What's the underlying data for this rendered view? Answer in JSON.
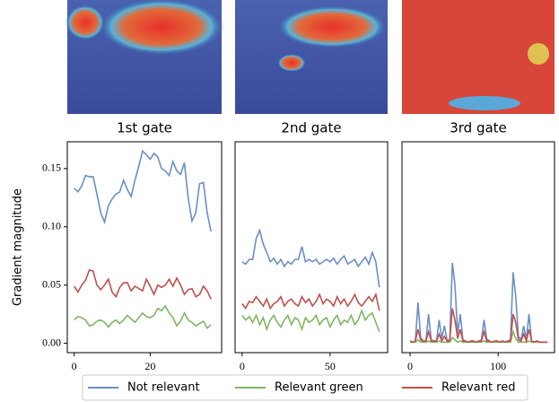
{
  "chart_data": [
    {
      "type": "line",
      "title": "1st gate",
      "ylabel": "Gradient magnitude",
      "x": [
        0,
        1,
        2,
        3,
        4,
        5,
        6,
        7,
        8,
        9,
        10,
        11,
        12,
        13,
        14,
        15,
        16,
        17,
        18,
        19,
        20,
        21,
        22,
        23,
        24,
        25,
        26,
        27,
        28,
        29,
        30,
        31,
        32,
        33,
        34,
        35,
        36
      ],
      "series": [
        {
          "name": "Not relevant",
          "color": "#6a8fc5",
          "values": [
            0.133,
            0.13,
            0.135,
            0.144,
            0.143,
            0.143,
            0.128,
            0.112,
            0.104,
            0.118,
            0.124,
            0.128,
            0.13,
            0.14,
            0.132,
            0.126,
            0.14,
            0.152,
            0.165,
            0.162,
            0.158,
            0.163,
            0.16,
            0.15,
            0.148,
            0.144,
            0.156,
            0.148,
            0.145,
            0.155,
            0.125,
            0.105,
            0.112,
            0.137,
            0.138,
            0.112,
            0.096
          ]
        },
        {
          "name": "Relevant green",
          "color": "#7fb661",
          "values": [
            0.02,
            0.023,
            0.022,
            0.02,
            0.015,
            0.016,
            0.019,
            0.02,
            0.018,
            0.014,
            0.018,
            0.02,
            0.017,
            0.02,
            0.024,
            0.021,
            0.018,
            0.022,
            0.026,
            0.023,
            0.022,
            0.024,
            0.03,
            0.028,
            0.032,
            0.026,
            0.022,
            0.015,
            0.019,
            0.026,
            0.02,
            0.018,
            0.015,
            0.017,
            0.019,
            0.013,
            0.016
          ]
        },
        {
          "name": "Relevant red",
          "color": "#c0504d",
          "values": [
            0.049,
            0.044,
            0.05,
            0.054,
            0.063,
            0.062,
            0.05,
            0.046,
            0.05,
            0.055,
            0.044,
            0.04,
            0.048,
            0.052,
            0.052,
            0.045,
            0.049,
            0.047,
            0.045,
            0.055,
            0.049,
            0.042,
            0.05,
            0.048,
            0.05,
            0.055,
            0.049,
            0.056,
            0.05,
            0.042,
            0.046,
            0.047,
            0.04,
            0.042,
            0.049,
            0.045,
            0.038
          ]
        }
      ],
      "xlim": [
        -1.8,
        38.8
      ],
      "xticks": [
        0,
        20
      ],
      "ylim": [
        -0.008,
        0.173
      ],
      "yticks": [
        {
          "value": 0,
          "label": "0.00"
        },
        0.05,
        {
          "value": 0.1,
          "label": "0.10"
        },
        0.15
      ]
    },
    {
      "type": "line",
      "title": "2nd gate",
      "x": [
        0,
        2,
        4,
        6,
        8,
        10,
        12,
        14,
        16,
        18,
        20,
        22,
        24,
        26,
        28,
        30,
        32,
        34,
        36,
        38,
        40,
        42,
        44,
        46,
        48,
        50,
        52,
        54,
        56,
        58,
        60,
        62,
        64,
        66,
        68,
        70,
        72,
        74,
        76,
        78
      ],
      "series": [
        {
          "name": "Not relevant",
          "color": "#6a8fc5",
          "values": [
            0.07,
            0.068,
            0.072,
            0.072,
            0.09,
            0.097,
            0.085,
            0.078,
            0.07,
            0.073,
            0.068,
            0.072,
            0.066,
            0.07,
            0.068,
            0.072,
            0.072,
            0.083,
            0.07,
            0.072,
            0.07,
            0.072,
            0.068,
            0.07,
            0.072,
            0.07,
            0.073,
            0.068,
            0.072,
            0.075,
            0.068,
            0.07,
            0.072,
            0.066,
            0.07,
            0.074,
            0.068,
            0.078,
            0.07,
            0.048
          ]
        },
        {
          "name": "Relevant green",
          "color": "#7fb661",
          "values": [
            0.024,
            0.02,
            0.023,
            0.018,
            0.024,
            0.016,
            0.022,
            0.012,
            0.02,
            0.024,
            0.018,
            0.014,
            0.02,
            0.024,
            0.016,
            0.022,
            0.02,
            0.012,
            0.022,
            0.018,
            0.02,
            0.024,
            0.016,
            0.02,
            0.022,
            0.014,
            0.02,
            0.024,
            0.016,
            0.02,
            0.018,
            0.024,
            0.016,
            0.02,
            0.028,
            0.02,
            0.024,
            0.026,
            0.018,
            0.01
          ]
        },
        {
          "name": "Relevant red",
          "color": "#c0504d",
          "values": [
            0.034,
            0.03,
            0.036,
            0.035,
            0.04,
            0.036,
            0.032,
            0.038,
            0.03,
            0.034,
            0.036,
            0.04,
            0.032,
            0.036,
            0.038,
            0.034,
            0.032,
            0.04,
            0.035,
            0.038,
            0.032,
            0.036,
            0.042,
            0.034,
            0.038,
            0.036,
            0.032,
            0.04,
            0.034,
            0.038,
            0.032,
            0.036,
            0.042,
            0.035,
            0.032,
            0.036,
            0.04,
            0.036,
            0.042,
            0.028
          ]
        }
      ],
      "xlim": [
        -4,
        82.7
      ],
      "xticks": [
        0,
        50
      ],
      "ylim": [
        -0.008,
        0.173
      ]
    },
    {
      "type": "line",
      "title": "3rd gate",
      "x": [
        0,
        3,
        6,
        9,
        12,
        15,
        18,
        21,
        24,
        27,
        30,
        33,
        36,
        39,
        42,
        45,
        48,
        51,
        54,
        57,
        60,
        63,
        66,
        69,
        72,
        75,
        78,
        81,
        84,
        87,
        90,
        93,
        96,
        99,
        102,
        105,
        108,
        111,
        114,
        117,
        120,
        123,
        126,
        129,
        132,
        135,
        138,
        141,
        144,
        147,
        150,
        153,
        156
      ],
      "series": [
        {
          "name": "Not relevant",
          "color": "#6a8fc5",
          "values": [
            0.002,
            0.001,
            0.002,
            0.035,
            0.005,
            0.002,
            0.002,
            0.025,
            0.003,
            0.002,
            0.002,
            0.02,
            0.004,
            0.015,
            0.003,
            0.002,
            0.069,
            0.05,
            0.008,
            0.025,
            0.003,
            0.002,
            0.001,
            0.002,
            0.002,
            0.001,
            0.002,
            0.003,
            0.02,
            0.004,
            0.002,
            0.001,
            0.002,
            0.002,
            0.001,
            0.002,
            0.001,
            0.002,
            0.003,
            0.061,
            0.04,
            0.006,
            0.003,
            0.015,
            0.003,
            0.025,
            0.002,
            0.001,
            0.002,
            0.001,
            0.001,
            0.001,
            0.001
          ]
        },
        {
          "name": "Relevant green",
          "color": "#7fb661",
          "values": [
            0.001,
            0.001,
            0.001,
            0.003,
            0.001,
            0.001,
            0.001,
            0.002,
            0.001,
            0.001,
            0.001,
            0.002,
            0.001,
            0.001,
            0.001,
            0.001,
            0.005,
            0.003,
            0.001,
            0.002,
            0.001,
            0.001,
            0.001,
            0.001,
            0.001,
            0.001,
            0.001,
            0.001,
            0.002,
            0.001,
            0.001,
            0.001,
            0.001,
            0.001,
            0.001,
            0.001,
            0.001,
            0.001,
            0.001,
            0.01,
            0.004,
            0.001,
            0.001,
            0.001,
            0.001,
            0.002,
            0.001,
            0.001,
            0.001,
            0.001,
            0.001,
            0.001,
            0.001
          ]
        },
        {
          "name": "Relevant red",
          "color": "#c0504d",
          "values": [
            0.002,
            0.001,
            0.002,
            0.012,
            0.003,
            0.002,
            0.002,
            0.01,
            0.002,
            0.002,
            0.002,
            0.008,
            0.002,
            0.006,
            0.002,
            0.002,
            0.03,
            0.02,
            0.004,
            0.012,
            0.002,
            0.002,
            0.001,
            0.002,
            0.002,
            0.001,
            0.002,
            0.002,
            0.01,
            0.002,
            0.002,
            0.001,
            0.002,
            0.002,
            0.001,
            0.002,
            0.001,
            0.002,
            0.002,
            0.025,
            0.018,
            0.003,
            0.002,
            0.008,
            0.002,
            0.012,
            0.002,
            0.001,
            0.002,
            0.001,
            0.001,
            0.001,
            0.001
          ]
        }
      ],
      "xlim": [
        -9.2,
        164
      ],
      "xticks": [
        0,
        100
      ],
      "ylim": [
        -0.008,
        0.173
      ]
    }
  ]
}
